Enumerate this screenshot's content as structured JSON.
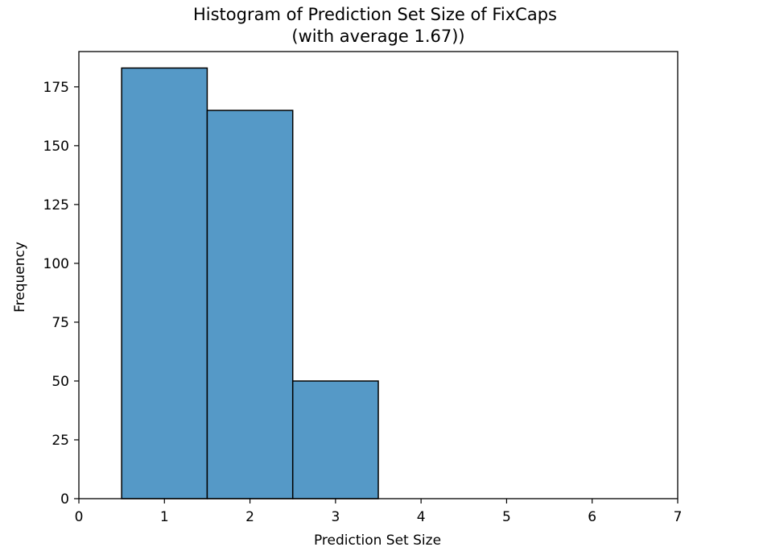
{
  "chart_data": {
    "type": "bar",
    "title": "Histogram of Prediction Set Size of FixCaps",
    "subtitle": "(with average 1.67))",
    "xlabel": "Prediction Set Size",
    "ylabel": "Frequency",
    "xlim": [
      0,
      7
    ],
    "ylim": [
      0,
      190
    ],
    "x_ticks": [
      "0",
      "1",
      "2",
      "3",
      "4",
      "5",
      "6",
      "7"
    ],
    "y_ticks": [
      "0",
      "25",
      "50",
      "75",
      "100",
      "125",
      "150",
      "175"
    ],
    "bins": [
      {
        "x_start": 0.5,
        "x_end": 1.5,
        "value": 183
      },
      {
        "x_start": 1.5,
        "x_end": 2.5,
        "value": 165
      },
      {
        "x_start": 2.5,
        "x_end": 3.5,
        "value": 50
      }
    ],
    "bar_color": "#5599c7",
    "edge_color": "#000000",
    "grid": false,
    "legend": "none"
  }
}
